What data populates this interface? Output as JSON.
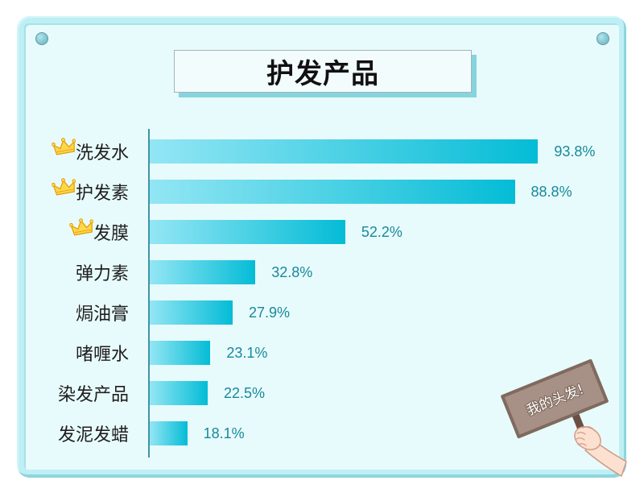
{
  "colors": {
    "page_background": "#ffffff",
    "frame": "#bdeff4",
    "panel": "#e8fbfc",
    "title_shadow": "#86d4dd",
    "axis": "#3f93a5",
    "bar_gradient_start": "#93e6f4",
    "bar_gradient_end": "#04bcd6",
    "value_label": "#17899a",
    "crown": "#ffd84a",
    "sign_board": "#a79187"
  },
  "icons": {
    "pin": "pin-icon",
    "crown": "crown-icon",
    "hand": "hand-icon"
  },
  "sign": {
    "text": "我的头发!"
  },
  "chart_data": {
    "type": "bar",
    "orientation": "horizontal",
    "title": "护发产品",
    "categories": [
      "洗发水",
      "护发素",
      "发膜",
      "弹力素",
      "焗油膏",
      "啫喱水",
      "染发产品",
      "发泥发蜡"
    ],
    "values": [
      93.8,
      88.8,
      52.2,
      32.8,
      27.9,
      23.1,
      22.5,
      18.1
    ],
    "value_labels": [
      "93.8%",
      "88.8%",
      "52.2%",
      "32.8%",
      "27.9%",
      "23.1%",
      "22.5%",
      "18.1%"
    ],
    "crowned": [
      true,
      true,
      true,
      false,
      false,
      false,
      false,
      false
    ],
    "xlim": [
      10,
      100
    ],
    "grid": false,
    "legend": "none"
  }
}
